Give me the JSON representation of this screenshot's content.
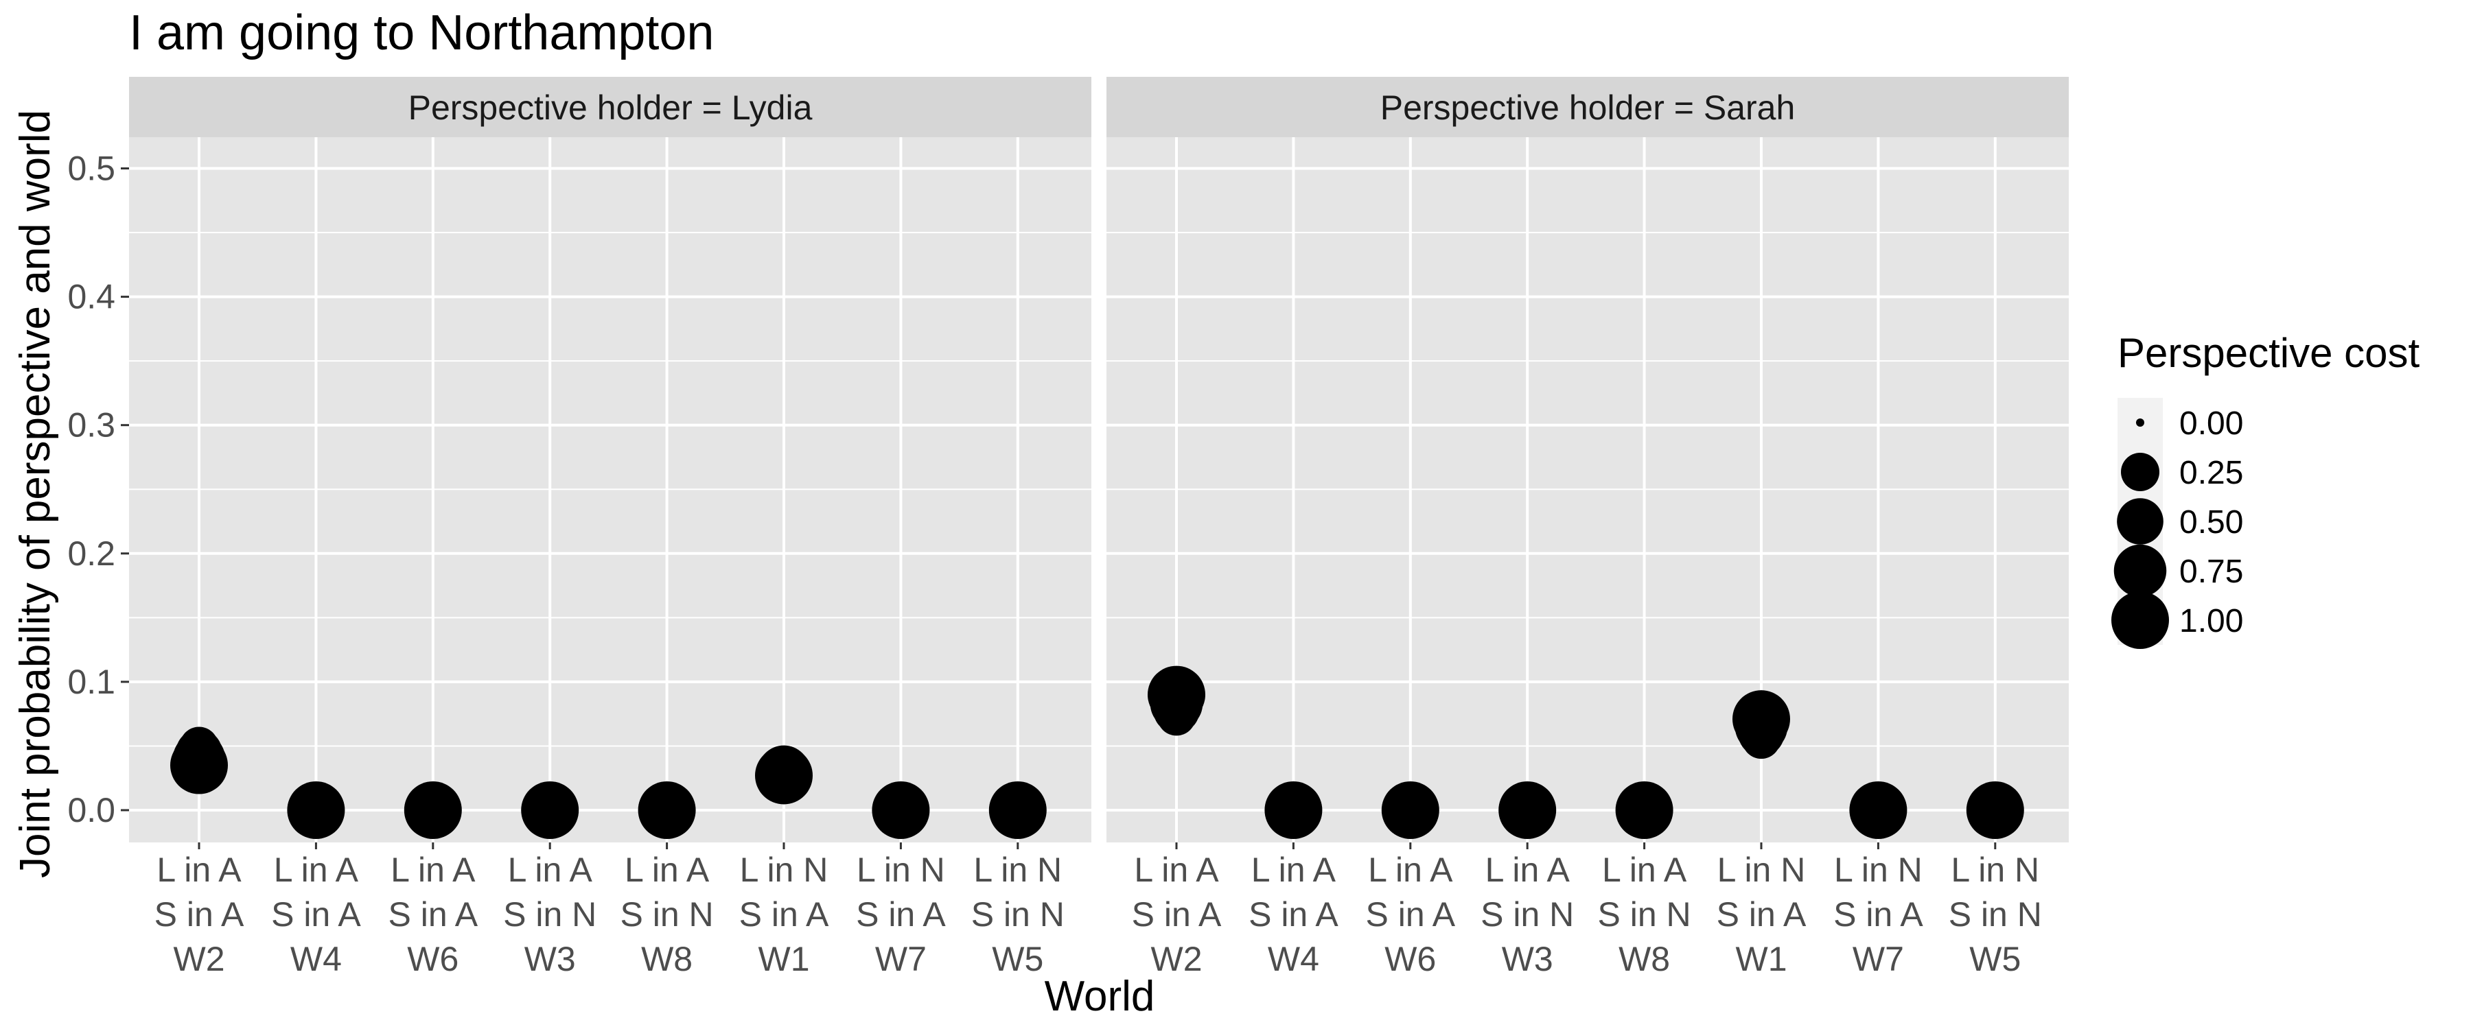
{
  "chart_data": {
    "type": "scatter",
    "title": "I am going to Northampton",
    "xlabel": "World",
    "ylabel": "Joint probability of perspective and world",
    "ylim": [
      0,
      0.52
    ],
    "yticks": [
      0.0,
      0.1,
      0.2,
      0.3,
      0.4,
      0.5
    ],
    "ytick_labels": [
      "0.0",
      "0.1",
      "0.2",
      "0.3",
      "0.4",
      "0.5"
    ],
    "grid": true,
    "legend_position": "right",
    "categories": [
      {
        "line1": "L in A",
        "line2": "S in A",
        "line3": "W2"
      },
      {
        "line1": "L in A",
        "line2": "S in A",
        "line3": "W4"
      },
      {
        "line1": "L in A",
        "line2": "S in A",
        "line3": "W6"
      },
      {
        "line1": "L in A",
        "line2": "S in N",
        "line3": "W3"
      },
      {
        "line1": "L in A",
        "line2": "S in N",
        "line3": "W8"
      },
      {
        "line1": "L in N",
        "line2": "S in A",
        "line3": "W1"
      },
      {
        "line1": "L in N",
        "line2": "S in A",
        "line3": "W7"
      },
      {
        "line1": "L in N",
        "line2": "S in N",
        "line3": "W5"
      }
    ],
    "size_legend": {
      "title": "Perspective cost",
      "breaks": [
        0.0,
        0.25,
        0.5,
        0.75,
        1.0
      ],
      "labels": [
        "0.00",
        "0.25",
        "0.50",
        "0.75",
        "1.00"
      ]
    },
    "panels": [
      {
        "strip": "Perspective holder = Lydia",
        "points": [
          {
            "world": "W2",
            "y": 0.05,
            "cost": 0.25
          },
          {
            "world": "W2",
            "y": 0.045,
            "cost": 0.5
          },
          {
            "world": "W2",
            "y": 0.04,
            "cost": 0.75
          },
          {
            "world": "W2",
            "y": 0.035,
            "cost": 1.0
          },
          {
            "world": "W4",
            "y": 0.0,
            "cost": 1.0
          },
          {
            "world": "W6",
            "y": 0.0,
            "cost": 1.0
          },
          {
            "world": "W3",
            "y": 0.0,
            "cost": 1.0
          },
          {
            "world": "W8",
            "y": 0.0,
            "cost": 1.0
          },
          {
            "world": "W1",
            "y": 0.035,
            "cost": 0.25
          },
          {
            "world": "W1",
            "y": 0.032,
            "cost": 0.5
          },
          {
            "world": "W1",
            "y": 0.03,
            "cost": 0.75
          },
          {
            "world": "W1",
            "y": 0.027,
            "cost": 1.0
          },
          {
            "world": "W7",
            "y": 0.0,
            "cost": 1.0
          },
          {
            "world": "W5",
            "y": 0.0,
            "cost": 1.0
          }
        ]
      },
      {
        "strip": "Perspective holder = Sarah",
        "points": [
          {
            "world": "W2",
            "y": 0.073,
            "cost": 0.25
          },
          {
            "world": "W2",
            "y": 0.078,
            "cost": 0.5
          },
          {
            "world": "W2",
            "y": 0.083,
            "cost": 0.75
          },
          {
            "world": "W2",
            "y": 0.09,
            "cost": 1.0
          },
          {
            "world": "W4",
            "y": 0.0,
            "cost": 1.0
          },
          {
            "world": "W6",
            "y": 0.0,
            "cost": 1.0
          },
          {
            "world": "W3",
            "y": 0.0,
            "cost": 1.0
          },
          {
            "world": "W8",
            "y": 0.0,
            "cost": 1.0
          },
          {
            "world": "W1",
            "y": 0.055,
            "cost": 0.25
          },
          {
            "world": "W1",
            "y": 0.06,
            "cost": 0.5
          },
          {
            "world": "W1",
            "y": 0.065,
            "cost": 0.75
          },
          {
            "world": "W1",
            "y": 0.071,
            "cost": 1.0
          },
          {
            "world": "W7",
            "y": 0.0,
            "cost": 1.0
          },
          {
            "world": "W5",
            "y": 0.0,
            "cost": 1.0
          }
        ]
      }
    ],
    "colors": {
      "panel_background": "#e5e5e5",
      "strip_background": "#d6d6d6",
      "grid": "#ffffff",
      "point": "#000000",
      "axis_text": "#4d4d4d",
      "text": "#000000"
    }
  }
}
